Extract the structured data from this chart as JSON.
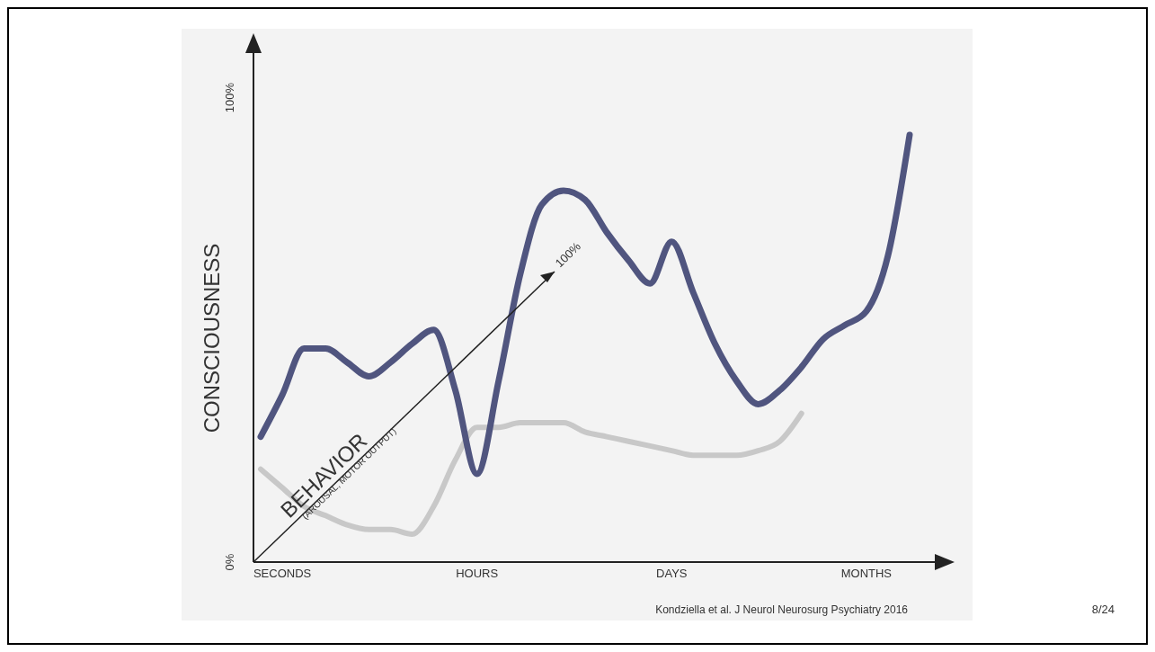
{
  "chart_data": {
    "type": "line",
    "ylabel": "CONSCIOUSNESS",
    "categories": [
      null,
      "SECONDS",
      null,
      null,
      null,
      null,
      null,
      null,
      null,
      null,
      "HOURS",
      null,
      null,
      null,
      null,
      null,
      null,
      null,
      null,
      "DAYS",
      null,
      null,
      null,
      null,
      null,
      null,
      null,
      null,
      "MONTHS",
      null,
      null
    ],
    "series": [
      {
        "color": "#c8c8c8",
        "values": [
          20,
          16,
          12,
          10,
          8,
          7,
          7,
          6,
          12,
          22,
          29,
          29,
          30,
          30,
          30,
          28,
          27,
          26,
          25,
          24,
          23,
          23,
          23,
          24,
          26,
          32,
          null,
          null,
          null,
          null,
          null
        ]
      },
      {
        "color": "#50557f",
        "values": [
          27,
          36,
          46,
          46,
          43,
          40,
          43,
          47,
          50,
          37,
          19,
          39,
          62,
          77,
          80,
          78,
          71,
          65,
          60,
          69,
          58,
          47,
          39,
          34,
          37,
          42,
          48,
          51,
          54,
          66,
          92
        ]
      }
    ],
    "line_style": "solid",
    "ylim": [
      0,
      110
    ],
    "yticks": [
      {
        "value": 0,
        "label": "0%"
      },
      {
        "value": 100,
        "label": "100%"
      }
    ],
    "annotations": [
      "BEHAVIOR",
      "(AROUSAL, MOTOR OUTPUT)",
      "100%",
      "Kondziella et al. J Neurol Neurosurg Psychiatry 2016",
      "8/24"
    ]
  }
}
